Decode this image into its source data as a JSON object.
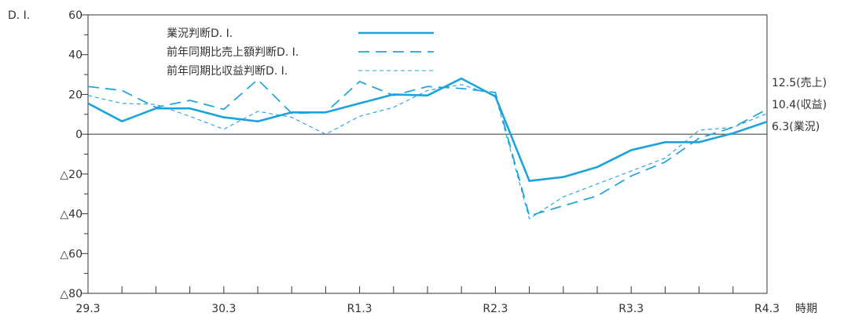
{
  "chart_data": {
    "type": "line",
    "ylabel": "D. I.",
    "xlabel": "時期",
    "ylim": [
      -80,
      60
    ],
    "yticks": [
      60,
      40,
      20,
      0,
      -20,
      -40,
      -60,
      -80
    ],
    "ytick_labels": [
      "60",
      "40",
      "20",
      "0",
      "△20",
      "△40",
      "△60",
      "△80"
    ],
    "x_tick_labels": [
      "29.3",
      "30.3",
      "R1.3",
      "R2.3",
      "R3.3",
      "R4.3"
    ],
    "x_count": 21,
    "x_label_every": 4,
    "series": [
      {
        "name": "業況判断D. I.",
        "style": "solid",
        "values": [
          15.5,
          6.5,
          13.0,
          13.0,
          8.5,
          6.5,
          11.0,
          11.0,
          15.5,
          20.0,
          19.5,
          28.0,
          19.0,
          -23.5,
          -21.5,
          -16.5,
          -8.0,
          -4.0,
          -4.0,
          0.5,
          6.3
        ]
      },
      {
        "name": "前年同期比売上額判断D. I.",
        "style": "dashed",
        "values": [
          24.0,
          22.0,
          13.5,
          17.0,
          12.5,
          27.5,
          10.5,
          11.0,
          26.5,
          19.5,
          24.0,
          23.0,
          21.0,
          -41.0,
          -36.0,
          -31.0,
          -21.0,
          -14.0,
          -2.0,
          3.5,
          12.5
        ]
      },
      {
        "name": "前年同期比収益判断D. I.",
        "style": "dotted",
        "values": [
          19.5,
          15.5,
          15.0,
          9.0,
          2.5,
          11.5,
          8.5,
          0.0,
          9.0,
          13.5,
          22.0,
          25.0,
          19.5,
          -42.5,
          -31.5,
          -25.0,
          -18.5,
          -12.0,
          2.0,
          3.5,
          10.4
        ]
      }
    ],
    "end_labels": [
      "12.5(売上)",
      "10.4(収益)",
      "6.3(業況)"
    ],
    "colors": {
      "line": "#1aa3dc",
      "axis": "#333333",
      "grid": "#333333"
    }
  }
}
